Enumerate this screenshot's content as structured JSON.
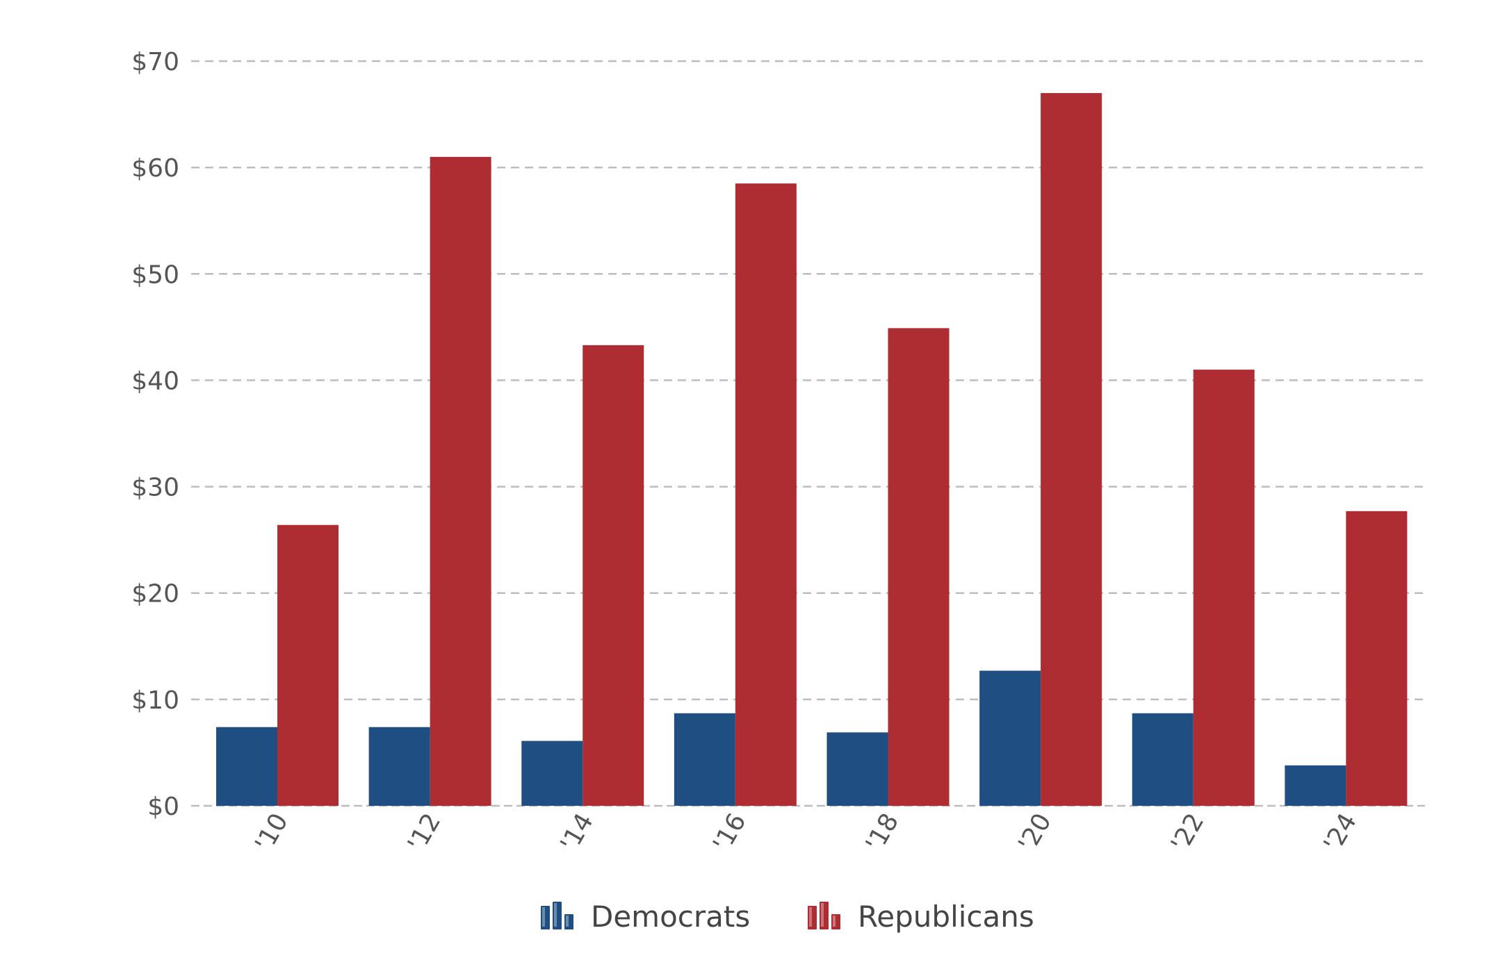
{
  "chart_data": {
    "type": "bar",
    "categories": [
      "'10",
      "'12",
      "'14",
      "'16",
      "'18",
      "'20",
      "'22",
      "'24"
    ],
    "series": [
      {
        "name": "Democrats",
        "color": "#1f4e82",
        "values": [
          7.4,
          7.4,
          6.1,
          8.7,
          6.9,
          12.7,
          8.7,
          3.8
        ]
      },
      {
        "name": "Republicans",
        "color": "#ad2d33",
        "values": [
          26.4,
          61.0,
          43.3,
          58.5,
          44.9,
          67.0,
          41.0,
          27.7
        ]
      }
    ],
    "title": "",
    "xlabel": "",
    "ylabel": "",
    "ylim": [
      0,
      70
    ],
    "yticks": [
      0,
      10,
      20,
      30,
      40,
      50,
      60,
      70
    ],
    "ytick_prefix": "$",
    "grid": true,
    "grid_style": "dashed",
    "legend_position": "bottom-center",
    "xtick_rotation": "-60deg"
  }
}
